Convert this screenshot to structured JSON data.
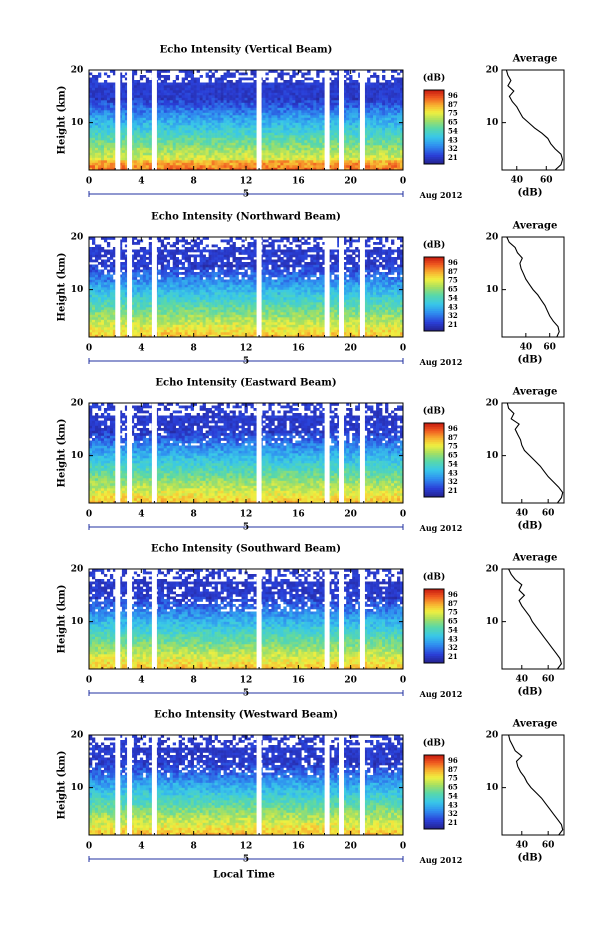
{
  "chart_data": [
    {
      "type": "heatmap",
      "title": "Echo Intensity (Vertical Beam)",
      "ylabel": "Height (km)",
      "xticks": [
        "0",
        "4",
        "8",
        "12",
        "16",
        "20",
        "0"
      ],
      "xlim": [
        0,
        24
      ],
      "ylim": [
        1,
        20
      ],
      "yticks": [
        "20",
        "10"
      ],
      "date_marker": "5",
      "date_label": "Aug 2012",
      "colorbar": {
        "unit": "(dB)",
        "ticks": [
          "96",
          "87",
          "75",
          "65",
          "54",
          "43",
          "32",
          "21"
        ]
      },
      "data_gaps_hours": [
        2.2,
        3.1,
        5.0,
        13.0,
        18.2,
        19.3,
        20.9
      ],
      "profile": {
        "title": "Average",
        "xlabel": "(dB)",
        "xticks": [
          "40",
          "60"
        ],
        "yticks": [
          "20",
          "10"
        ],
        "xlim": [
          30,
          72
        ],
        "height_km": [
          1,
          2,
          3,
          4,
          5,
          6,
          7,
          8,
          9,
          10,
          11,
          12,
          13,
          14,
          15,
          16,
          17,
          18,
          19,
          20
        ],
        "avg_db": [
          66,
          70,
          71,
          70,
          66,
          63,
          61,
          57,
          52,
          48,
          44,
          42,
          40,
          37,
          35,
          38,
          34,
          36,
          34,
          33
        ]
      }
    },
    {
      "type": "heatmap",
      "title": "Echo Intensity (Northward Beam)",
      "ylabel": "Height (km)",
      "xticks": [
        "0",
        "4",
        "8",
        "12",
        "16",
        "20",
        "0"
      ],
      "xlim": [
        0,
        24
      ],
      "ylim": [
        1,
        20
      ],
      "yticks": [
        "20",
        "10"
      ],
      "date_marker": "5",
      "date_label": "Aug 2012",
      "colorbar": {
        "unit": "(dB)",
        "ticks": [
          "96",
          "87",
          "75",
          "65",
          "54",
          "43",
          "32",
          "21"
        ]
      },
      "data_gaps_hours": [
        2.2,
        3.1,
        5.0,
        13.0,
        18.2,
        19.3,
        20.9
      ],
      "profile": {
        "title": "Average",
        "xlabel": "(dB)",
        "xticks": [
          "40",
          "60"
        ],
        "yticks": [
          "20",
          "10"
        ],
        "xlim": [
          20,
          72
        ],
        "height_km": [
          1,
          2,
          3,
          4,
          5,
          6,
          7,
          8,
          9,
          10,
          11,
          12,
          13,
          14,
          15,
          16,
          17,
          18,
          19,
          20
        ],
        "avg_db": [
          66,
          68,
          67,
          63,
          60,
          58,
          56,
          53,
          50,
          46,
          43,
          40,
          38,
          36,
          35,
          37,
          33,
          31,
          26,
          24
        ]
      }
    },
    {
      "type": "heatmap",
      "title": "Echo Intensity (Eastward Beam)",
      "ylabel": "Height (km)",
      "xticks": [
        "0",
        "4",
        "8",
        "12",
        "16",
        "20",
        "0"
      ],
      "xlim": [
        0,
        24
      ],
      "ylim": [
        1,
        20
      ],
      "yticks": [
        "20",
        "10"
      ],
      "date_marker": "5",
      "date_label": "Aug 2012",
      "colorbar": {
        "unit": "(dB)",
        "ticks": [
          "96",
          "87",
          "75",
          "65",
          "54",
          "43",
          "32",
          "21"
        ]
      },
      "data_gaps_hours": [
        2.2,
        3.1,
        5.0,
        13.0,
        18.2,
        19.3,
        20.9
      ],
      "profile": {
        "title": "Average",
        "xlabel": "(dB)",
        "xticks": [
          "40",
          "60"
        ],
        "yticks": [
          "20",
          "10"
        ],
        "xlim": [
          25,
          72
        ],
        "height_km": [
          1,
          2,
          3,
          4,
          5,
          6,
          7,
          8,
          9,
          10,
          11,
          12,
          13,
          14,
          15,
          16,
          17,
          18,
          19,
          20
        ],
        "avg_db": [
          67,
          70,
          71,
          68,
          64,
          60,
          57,
          54,
          50,
          46,
          42,
          40,
          39,
          37,
          35,
          38,
          32,
          34,
          30,
          29
        ]
      }
    },
    {
      "type": "heatmap",
      "title": "Echo Intensity (Southward Beam)",
      "ylabel": "Height (km)",
      "xticks": [
        "0",
        "4",
        "8",
        "12",
        "16",
        "20",
        "0"
      ],
      "xlim": [
        0,
        24
      ],
      "ylim": [
        1,
        20
      ],
      "yticks": [
        "20",
        "10"
      ],
      "date_marker": "5",
      "date_label": "Aug 2012",
      "colorbar": {
        "unit": "(dB)",
        "ticks": [
          "96",
          "87",
          "75",
          "65",
          "54",
          "43",
          "32",
          "21"
        ]
      },
      "data_gaps_hours": [
        2.2,
        3.1,
        5.0,
        13.0,
        18.2,
        19.3,
        20.9
      ],
      "profile": {
        "title": "Average",
        "xlabel": "(dB)",
        "xticks": [
          "40",
          "60"
        ],
        "yticks": [
          "20",
          "10"
        ],
        "xlim": [
          25,
          72
        ],
        "height_km": [
          1,
          2,
          3,
          4,
          5,
          6,
          7,
          8,
          9,
          10,
          11,
          12,
          13,
          14,
          15,
          16,
          17,
          18,
          19,
          20
        ],
        "avg_db": [
          67,
          70,
          69,
          66,
          63,
          60,
          57,
          54,
          51,
          48,
          46,
          43,
          40,
          38,
          42,
          38,
          40,
          35,
          32,
          30
        ]
      }
    },
    {
      "type": "heatmap",
      "title": "Echo Intensity (Westward Beam)",
      "ylabel": "Height (km)",
      "xlabel": "Local Time",
      "xticks": [
        "0",
        "4",
        "8",
        "12",
        "16",
        "20",
        "0"
      ],
      "xlim": [
        0,
        24
      ],
      "ylim": [
        1,
        20
      ],
      "yticks": [
        "20",
        "10"
      ],
      "date_marker": "5",
      "date_label": "Aug 2012",
      "colorbar": {
        "unit": "(dB)",
        "ticks": [
          "96",
          "87",
          "75",
          "65",
          "54",
          "43",
          "32",
          "21"
        ]
      },
      "data_gaps_hours": [
        2.2,
        3.1,
        5.0,
        13.0,
        18.2,
        19.3,
        20.9
      ],
      "profile": {
        "title": "Average",
        "xlabel": "(dB)",
        "xticks": [
          "40",
          "60"
        ],
        "yticks": [
          "20",
          "10"
        ],
        "xlim": [
          25,
          72
        ],
        "height_km": [
          1,
          2,
          3,
          4,
          5,
          6,
          7,
          8,
          9,
          10,
          11,
          12,
          13,
          14,
          15,
          16,
          17,
          18,
          19,
          20
        ],
        "avg_db": [
          68,
          71,
          70,
          67,
          64,
          61,
          58,
          55,
          51,
          47,
          44,
          42,
          39,
          37,
          36,
          40,
          35,
          33,
          31,
          30
        ]
      }
    }
  ]
}
